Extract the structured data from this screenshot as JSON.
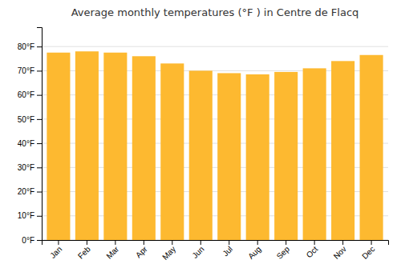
{
  "chart_data": {
    "type": "bar",
    "title": "Average monthly temperatures (°F ) in Centre de Flacq",
    "categories": [
      "Jan",
      "Feb",
      "Mar",
      "Apr",
      "May",
      "Jun",
      "Jul",
      "Aug",
      "Sep",
      "Oct",
      "Nov",
      "Dec"
    ],
    "values": [
      77.5,
      78.0,
      77.5,
      76.0,
      73.0,
      70.0,
      69.0,
      68.5,
      69.5,
      71.0,
      74.0,
      76.5
    ],
    "color": "#FDB930",
    "ylim": [
      0,
      88
    ],
    "yticks": [
      {
        "value": 0,
        "label": "0°F"
      },
      {
        "value": 10,
        "label": "10°F"
      },
      {
        "value": 20,
        "label": "20°F"
      },
      {
        "value": 30,
        "label": "30°F"
      },
      {
        "value": 40,
        "label": "40°F"
      },
      {
        "value": 50,
        "label": "50°F"
      },
      {
        "value": 60,
        "label": "60°F"
      },
      {
        "value": 70,
        "label": "70°F"
      },
      {
        "value": 80,
        "label": "80°F"
      }
    ],
    "grid": true
  }
}
